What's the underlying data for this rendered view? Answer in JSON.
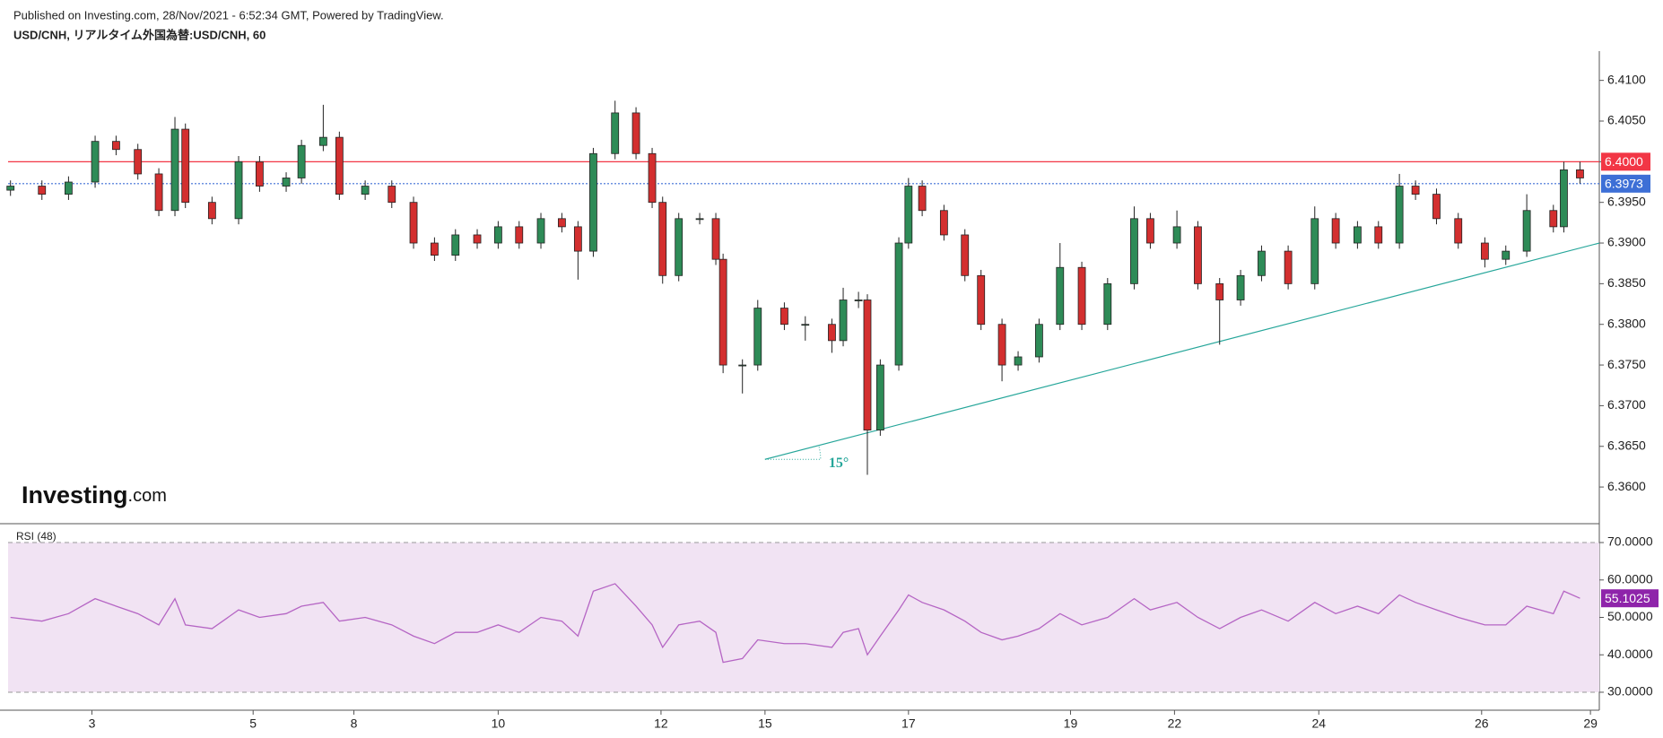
{
  "header": "Published on Investing.com, 28/Nov/2021 - 6:52:34 GMT, Powered by TradingView.",
  "logo": {
    "name": "Investing",
    "suffix": ".com"
  },
  "chart_data": [
    {
      "type": "candlestick",
      "title": "USD/CNH, リアルタイム外国為替:USD/CNH, 60",
      "up_color": "#2e8b57",
      "down_color": "#d32f2f",
      "x": [
        0.03,
        0.42,
        0.75,
        1.08,
        1.34,
        1.61,
        1.87,
        2.07,
        2.2,
        2.53,
        2.86,
        3.12,
        3.45,
        3.64,
        3.91,
        4.11,
        4.43,
        4.76,
        5.03,
        5.29,
        5.55,
        5.82,
        6.08,
        6.34,
        6.61,
        6.87,
        7.07,
        7.26,
        7.53,
        7.79,
        7.99,
        8.12,
        8.32,
        8.58,
        8.78,
        8.87,
        9.11,
        9.3,
        9.63,
        9.89,
        10.22,
        10.36,
        10.55,
        10.66,
        10.82,
        11.05,
        11.17,
        11.34,
        11.61,
        11.87,
        12.07,
        12.33,
        12.53,
        12.79,
        13.05,
        13.32,
        13.64,
        13.97,
        14.17,
        14.5,
        14.76,
        15.03,
        15.29,
        15.55,
        15.88,
        16.21,
        16.47,
        16.74,
        17.0,
        17.26,
        17.46,
        17.72,
        17.99,
        18.32,
        18.58,
        18.84,
        19.17,
        19.3,
        19.5
      ],
      "open": [
        6.3965,
        6.397,
        6.396,
        6.3975,
        6.4025,
        6.4015,
        6.3985,
        6.394,
        6.404,
        6.395,
        6.393,
        6.4,
        6.397,
        6.398,
        6.402,
        6.403,
        6.396,
        6.397,
        6.395,
        6.39,
        6.3885,
        6.391,
        6.39,
        6.392,
        6.39,
        6.393,
        6.392,
        6.389,
        6.401,
        6.406,
        6.401,
        6.395,
        6.386,
        6.393,
        6.393,
        6.388,
        6.375,
        6.375,
        6.382,
        6.38,
        6.38,
        6.378,
        6.383,
        6.383,
        6.367,
        6.375,
        6.39,
        6.397,
        6.394,
        6.391,
        6.386,
        6.38,
        6.375,
        6.376,
        6.38,
        6.387,
        6.38,
        6.385,
        6.393,
        6.39,
        6.392,
        6.385,
        6.383,
        6.386,
        6.389,
        6.385,
        6.393,
        6.39,
        6.392,
        6.39,
        6.397,
        6.396,
        6.393,
        6.39,
        6.388,
        6.389,
        6.394,
        6.392,
        6.399
      ],
      "high": [
        6.3977,
        6.3977,
        6.3982,
        6.4032,
        6.4032,
        6.4022,
        6.3992,
        6.4055,
        6.4047,
        6.3957,
        6.4007,
        6.4007,
        6.3987,
        6.4027,
        6.407,
        6.4037,
        6.3977,
        6.3977,
        6.3957,
        6.3907,
        6.3917,
        6.3917,
        6.3927,
        6.3927,
        6.3937,
        6.3937,
        6.3927,
        6.4017,
        6.4075,
        6.4067,
        6.4017,
        6.3957,
        6.3937,
        6.3937,
        6.3937,
        6.3887,
        6.3757,
        6.383,
        6.3827,
        6.381,
        6.3807,
        6.3845,
        6.384,
        6.3837,
        6.3757,
        6.3907,
        6.398,
        6.3977,
        6.3947,
        6.3917,
        6.3867,
        6.3807,
        6.3767,
        6.3807,
        6.39,
        6.3877,
        6.3857,
        6.3945,
        6.3937,
        6.394,
        6.3927,
        6.3857,
        6.3867,
        6.3897,
        6.3897,
        6.3945,
        6.3937,
        6.3927,
        6.3927,
        6.3985,
        6.3977,
        6.3967,
        6.3937,
        6.3907,
        6.3897,
        6.396,
        6.3947,
        6.4,
        6.4
      ],
      "low": [
        6.3958,
        6.3953,
        6.3953,
        6.3968,
        6.4008,
        6.3978,
        6.3933,
        6.3933,
        6.3943,
        6.3923,
        6.3923,
        6.3963,
        6.3963,
        6.3973,
        6.4013,
        6.3953,
        6.3953,
        6.3943,
        6.3893,
        6.3878,
        6.3878,
        6.3893,
        6.3893,
        6.3893,
        6.3893,
        6.3913,
        6.3855,
        6.3883,
        6.4003,
        6.4003,
        6.3943,
        6.385,
        6.3853,
        6.3923,
        6.3873,
        6.374,
        6.3715,
        6.3743,
        6.3793,
        6.378,
        6.3765,
        6.3773,
        6.382,
        6.3615,
        6.3663,
        6.3743,
        6.3893,
        6.3933,
        6.3903,
        6.3853,
        6.3793,
        6.373,
        6.3743,
        6.3753,
        6.3793,
        6.3793,
        6.3793,
        6.3843,
        6.3893,
        6.3893,
        6.3843,
        6.3775,
        6.3823,
        6.3853,
        6.3843,
        6.3843,
        6.3893,
        6.3893,
        6.3893,
        6.3893,
        6.3953,
        6.3923,
        6.3893,
        6.387,
        6.3873,
        6.3883,
        6.3913,
        6.3913,
        6.3973
      ],
      "close": [
        6.397,
        6.396,
        6.3975,
        6.4025,
        6.4015,
        6.3985,
        6.394,
        6.404,
        6.395,
        6.393,
        6.4,
        6.397,
        6.398,
        6.402,
        6.403,
        6.396,
        6.397,
        6.395,
        6.39,
        6.3885,
        6.391,
        6.39,
        6.392,
        6.39,
        6.393,
        6.392,
        6.389,
        6.401,
        6.406,
        6.401,
        6.395,
        6.386,
        6.393,
        6.393,
        6.388,
        6.375,
        6.375,
        6.382,
        6.38,
        6.38,
        6.378,
        6.383,
        6.383,
        6.367,
        6.375,
        6.39,
        6.397,
        6.394,
        6.391,
        6.386,
        6.38,
        6.375,
        6.376,
        6.38,
        6.387,
        6.38,
        6.385,
        6.393,
        6.39,
        6.392,
        6.385,
        6.383,
        6.386,
        6.389,
        6.385,
        6.393,
        6.39,
        6.392,
        6.39,
        6.397,
        6.396,
        6.393,
        6.39,
        6.388,
        6.389,
        6.394,
        6.392,
        6.399,
        6.398
      ],
      "xlim": [
        0,
        19.74
      ],
      "xticks": [
        {
          "value": 1.04,
          "label": "3"
        },
        {
          "value": 3.04,
          "label": "5"
        },
        {
          "value": 4.29,
          "label": "8"
        },
        {
          "value": 6.08,
          "label": "10"
        },
        {
          "value": 8.1,
          "label": "12"
        },
        {
          "value": 9.39,
          "label": "15"
        },
        {
          "value": 11.17,
          "label": "17"
        },
        {
          "value": 13.18,
          "label": "19"
        },
        {
          "value": 14.47,
          "label": "22"
        },
        {
          "value": 16.26,
          "label": "24"
        },
        {
          "value": 18.28,
          "label": "26"
        },
        {
          "value": 19.63,
          "label": "29"
        }
      ],
      "ylim": [
        6.3556,
        6.4136
      ],
      "yticks": [
        {
          "value": 6.36,
          "label": "6.3600"
        },
        {
          "value": 6.365,
          "label": "6.3650"
        },
        {
          "value": 6.37,
          "label": "6.3700"
        },
        {
          "value": 6.375,
          "label": "6.3750"
        },
        {
          "value": 6.38,
          "label": "6.3800"
        },
        {
          "value": 6.385,
          "label": "6.3850"
        },
        {
          "value": 6.39,
          "label": "6.3900"
        },
        {
          "value": 6.395,
          "label": "6.3950"
        },
        {
          "value": 6.4,
          "label": "6.4000"
        },
        {
          "value": 6.405,
          "label": "6.4050"
        },
        {
          "value": 6.41,
          "label": "6.4100"
        }
      ],
      "hlines": [
        {
          "value": 6.4,
          "label": "6.4000",
          "color": "#f23645",
          "style": "solid"
        },
        {
          "value": 6.3973,
          "label": "6.3973",
          "color": "#3d6fd6",
          "style": "dotted"
        }
      ],
      "trendline": {
        "x": [
          9.39,
          19.74
        ],
        "y": [
          6.3634,
          6.39
        ],
        "color": "#26a69a",
        "angle_label": "15°"
      }
    },
    {
      "type": "line",
      "x_from": 0,
      "series": [
        {
          "name": "RSI (48)",
          "color": "#b565c4",
          "values": [
            50,
            49,
            51,
            55,
            53,
            51,
            48,
            55,
            48,
            47,
            52,
            50,
            51,
            53,
            54,
            49,
            50,
            48,
            45,
            43,
            46,
            46,
            48,
            46,
            50,
            49,
            45,
            57,
            59,
            53,
            48,
            42,
            48,
            49,
            46,
            38,
            39,
            44,
            43,
            43,
            42,
            46,
            47,
            40,
            45,
            52,
            56,
            54,
            52,
            49,
            46,
            44,
            45,
            47,
            51,
            48,
            50,
            55,
            52,
            54,
            50,
            47,
            50,
            52,
            49,
            54,
            51,
            53,
            51,
            56,
            54,
            52,
            50,
            48,
            48,
            53,
            51,
            57,
            55.1025
          ]
        }
      ],
      "tag_color": "#8e24aa",
      "band": [
        30,
        70
      ],
      "band_color": "#f1e3f3",
      "ylim": [
        25.2,
        74.8
      ],
      "yticks": [
        {
          "value": 30,
          "label": "30.0000"
        },
        {
          "value": 40,
          "label": "40.0000"
        },
        {
          "value": 50,
          "label": "50.0000"
        },
        {
          "value": 60,
          "label": "60.0000"
        },
        {
          "value": 70,
          "label": "70.0000"
        }
      ]
    }
  ]
}
